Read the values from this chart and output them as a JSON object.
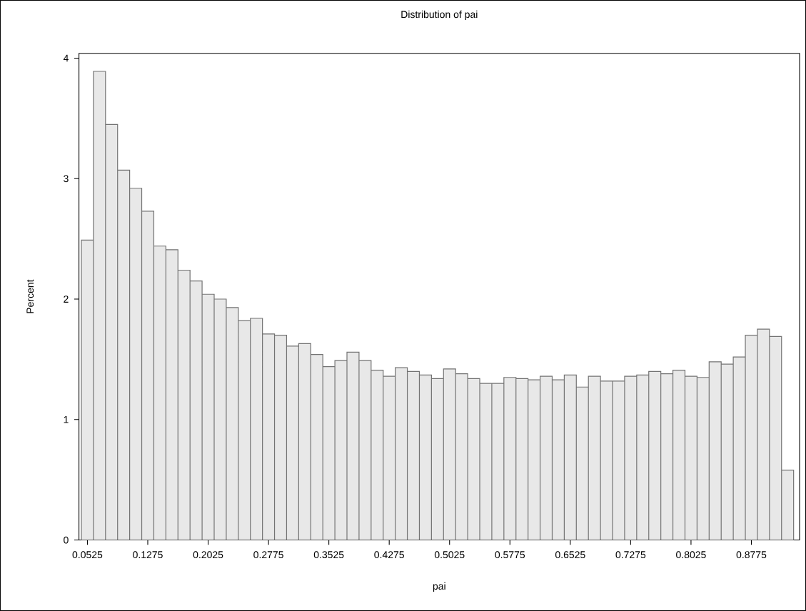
{
  "chart_data": {
    "type": "histogram",
    "title": "Distribution of pai",
    "xlabel": "pai",
    "ylabel": "Percent",
    "bins": [
      0.045,
      0.06,
      0.075,
      0.09,
      0.105,
      0.12,
      0.135,
      0.15,
      0.165,
      0.18,
      0.195,
      0.21,
      0.225,
      0.24,
      0.255,
      0.27,
      0.285,
      0.3,
      0.315,
      0.33,
      0.345,
      0.36,
      0.375,
      0.39,
      0.405,
      0.42,
      0.435,
      0.45,
      0.465,
      0.48,
      0.495,
      0.51,
      0.525,
      0.54,
      0.555,
      0.57,
      0.585,
      0.6,
      0.615,
      0.63,
      0.645,
      0.66,
      0.675,
      0.69,
      0.705,
      0.72,
      0.735,
      0.75,
      0.765,
      0.78,
      0.795,
      0.81,
      0.825,
      0.84,
      0.855,
      0.87,
      0.885,
      0.9,
      0.915,
      0.93
    ],
    "values": [
      2.49,
      3.89,
      3.45,
      3.07,
      2.92,
      2.73,
      2.44,
      2.41,
      2.24,
      2.15,
      2.04,
      2.0,
      1.93,
      1.82,
      1.84,
      1.71,
      1.7,
      1.61,
      1.63,
      1.54,
      1.44,
      1.49,
      1.56,
      1.49,
      1.41,
      1.36,
      1.43,
      1.4,
      1.37,
      1.34,
      1.42,
      1.38,
      1.34,
      1.3,
      1.3,
      1.35,
      1.34,
      1.33,
      1.36,
      1.33,
      1.37,
      1.27,
      1.36,
      1.32,
      1.32,
      1.36,
      1.37,
      1.4,
      1.38,
      1.41,
      1.36,
      1.35,
      1.48,
      1.46,
      1.52,
      1.7,
      1.75,
      1.69,
      0.58
    ],
    "color": "#e8e8e8",
    "xlim": [
      0.042,
      0.9374
    ],
    "ylim": [
      0,
      4.04
    ],
    "xticks": [
      0.0525,
      0.1275,
      0.2025,
      0.2775,
      0.3525,
      0.4275,
      0.5025,
      0.5775,
      0.6525,
      0.7275,
      0.8025,
      0.8775
    ],
    "yticks": [
      0,
      1,
      2,
      3,
      4
    ],
    "grid": false
  }
}
